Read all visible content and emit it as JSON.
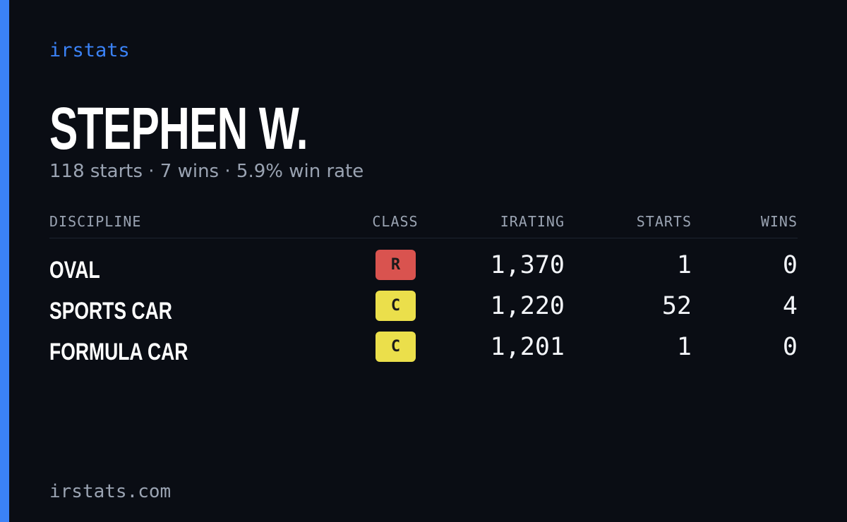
{
  "header": {
    "brand": "irstats",
    "name": "STEPHEN W.",
    "summary": "118 starts · 7 wins · 5.9% win rate"
  },
  "table": {
    "columns": [
      "DISCIPLINE",
      "CLASS",
      "IRATING",
      "STARTS",
      "WINS"
    ],
    "rows": [
      {
        "discipline": "OVAL",
        "class": "R",
        "class_color": "#d9534f",
        "irating": "1,370",
        "starts": "1",
        "wins": "0"
      },
      {
        "discipline": "SPORTS CAR",
        "class": "C",
        "class_color": "#ebdf4b",
        "irating": "1,220",
        "starts": "52",
        "wins": "4"
      },
      {
        "discipline": "FORMULA CAR",
        "class": "C",
        "class_color": "#ebdf4b",
        "irating": "1,201",
        "starts": "1",
        "wins": "0"
      }
    ]
  },
  "footer": {
    "site": "irstats.com"
  }
}
